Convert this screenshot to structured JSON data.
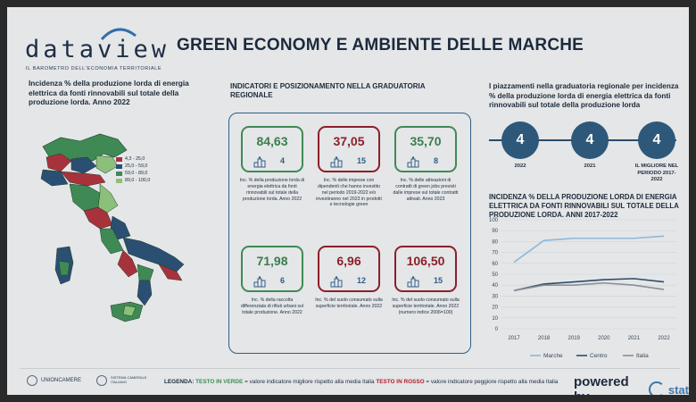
{
  "header": {
    "logo_word": "dataview",
    "logo_subtitle": "IL BAROMETRO DELL'ECONOMIA TERRITORIALE",
    "title": "GREEN ECONOMY E AMBIENTE DELLE MARCHE"
  },
  "map_panel": {
    "title": "Incidenza % della produzione lorda di energia elettrica da fonti rinnovabili sul totale della produzione lorda. Anno 2022",
    "legend": [
      {
        "label": "4,3 - 25,0",
        "color": "#a8323c"
      },
      {
        "label": "25,0 - 59,0",
        "color": "#2b4f72"
      },
      {
        "label": "59,0 - 89,0",
        "color": "#3f8a54"
      },
      {
        "label": "89,0 - 100,0",
        "color": "#8cc07a"
      }
    ]
  },
  "indicators": {
    "title": "INDICATORI E POSIZIONAMENTO NELLA GRADUATORIA REGIONALE",
    "tiles": [
      {
        "value": "84,63",
        "rank": "4",
        "status": "green",
        "icon": "podium-icon",
        "description": "Inc. % della produzione lorda di energia elettrica da fonti rinnovabili sul totale della produzione lorda. Anno 2022"
      },
      {
        "value": "37,05",
        "rank": "15",
        "status": "red",
        "icon": "podium-icon",
        "description": "Inc. % delle imprese con dipendenti che hanno investito nel periodo 2019-2022 e/o investiranno nel 2023 in prodotti e tecnologie green"
      },
      {
        "value": "35,70",
        "rank": "8",
        "status": "green",
        "icon": "podium-icon",
        "description": "Inc. % delle attivazioni di contratti di green jobs previsti dalle imprese sul totale contratti attivati. Anno 2023"
      },
      {
        "value": "71,98",
        "rank": "6",
        "status": "green",
        "icon": "podium-icon",
        "description": "Inc. % della raccolta differenziata di rifiuti urbani sul totale produzione. Anno 2022"
      },
      {
        "value": "6,96",
        "rank": "12",
        "status": "red",
        "icon": "podium-icon",
        "description": "Inc. % del suolo consumato sulla superficie territoriale. Anno 2022"
      },
      {
        "value": "106,50",
        "rank": "15",
        "status": "red",
        "icon": "podium-icon",
        "description": "Inc. % del suolo consumato sulla superficie territoriale. Anno 2022 (numero indice 2006=100)"
      }
    ]
  },
  "ranking": {
    "title": "I piazzamenti nella graduatoria regionale per incidenza % della produzione lorda di energia elettrica da fonti rinnovabili sul totale della produzione lorda",
    "items": [
      {
        "value": "4",
        "label": "2022"
      },
      {
        "value": "4",
        "label": "2021"
      },
      {
        "value": "4",
        "label": "IL MIGLIORE NEL PERIODO 2017-2022"
      }
    ]
  },
  "chart_data": {
    "type": "line",
    "title": "INCIDENZA % DELLA PRODUZIONE LORDA DI ENERGIA ELETTRICA DA FONTI RINNOVABILI SUL TOTALE DELLA PRODUZIONE LORDA. ANNI 2017-2022",
    "x": [
      "2017",
      "2018",
      "2019",
      "2020",
      "2021",
      "2022"
    ],
    "ylim": [
      0,
      100
    ],
    "yticks": [
      0,
      10,
      20,
      30,
      40,
      50,
      60,
      70,
      80,
      90,
      100
    ],
    "grid": true,
    "legend_position": "bottom",
    "series": [
      {
        "name": "Marche",
        "color": "#8fb8d8",
        "values": [
          61,
          81,
          83,
          83,
          83,
          85
        ]
      },
      {
        "name": "Centro",
        "color": "#2c4d6c",
        "values": [
          35,
          41,
          43,
          45,
          46,
          43
        ]
      },
      {
        "name": "Italia",
        "color": "#8a8f94",
        "values": [
          35,
          40,
          40,
          42,
          40,
          36
        ]
      }
    ]
  },
  "footer": {
    "logo1": "UNIONCAMERE",
    "logo2": "SISTEMA CAMERALE ITALIANO",
    "legend_label": "LEGENDA:",
    "green_label": "TESTO IN VERDE",
    "green_text": "= valore indicatore migliore rispetto alla media Italia",
    "red_label": "TESTO IN ROSSO",
    "red_text": "= valore indicatore peggiore rispetto alla media Italia",
    "powered_by": "powered by",
    "brand": "stat"
  }
}
